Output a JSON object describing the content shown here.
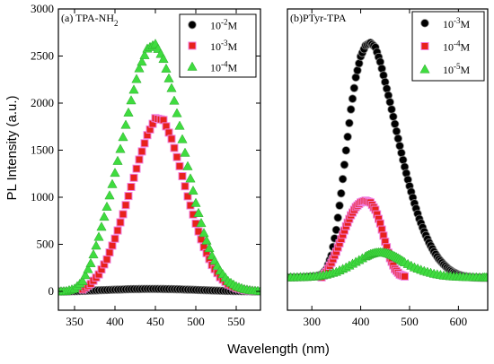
{
  "figure": {
    "xlabel": "Wavelength (nm)",
    "ylabel": "PL Intensity (a.u.)"
  },
  "chart_data": [
    {
      "type": "scatter",
      "panel_label": "(a) TPA-NH",
      "panel_label_sub": "2",
      "xlim": [
        330,
        580
      ],
      "ylim": [
        -200,
        3000
      ],
      "xticks": [
        350,
        400,
        450,
        500,
        550
      ],
      "yticks": [
        0,
        500,
        1000,
        1500,
        2000,
        2500,
        3000
      ],
      "legend_position": "top-right",
      "series": [
        {
          "name_base": "10",
          "name_exp": "-2",
          "name_unit": "M",
          "marker": "circle",
          "color": "#000000",
          "x": [
            330,
            340,
            350,
            360,
            370,
            380,
            390,
            400,
            410,
            420,
            430,
            440,
            450,
            460,
            470,
            480,
            490,
            500,
            510,
            520,
            530,
            540,
            550,
            560,
            570,
            580
          ],
          "y": [
            0,
            0,
            2,
            5,
            8,
            12,
            15,
            18,
            21,
            24,
            25,
            26,
            26,
            25,
            24,
            22,
            19,
            16,
            13,
            10,
            7,
            5,
            3,
            2,
            1,
            0
          ]
        },
        {
          "name_base": "10",
          "name_exp": "-3",
          "name_unit": "M",
          "marker": "square",
          "color": "#e8211c",
          "x": [
            360,
            370,
            380,
            390,
            400,
            410,
            420,
            430,
            440,
            450,
            460,
            470,
            480,
            490,
            500,
            510,
            520,
            530,
            540,
            550,
            560,
            570
          ],
          "y": [
            20,
            80,
            180,
            340,
            560,
            820,
            1110,
            1400,
            1660,
            1840,
            1820,
            1620,
            1330,
            1010,
            720,
            470,
            280,
            150,
            75,
            35,
            15,
            5
          ]
        },
        {
          "name_base": "10",
          "name_exp": "-4",
          "name_unit": "M",
          "marker": "triangle",
          "color": "#3fdc3f",
          "x": [
            330,
            340,
            350,
            360,
            370,
            380,
            390,
            400,
            410,
            420,
            430,
            440,
            450,
            460,
            470,
            480,
            490,
            500,
            510,
            520,
            530,
            540,
            550,
            560,
            570,
            580
          ],
          "y": [
            0,
            5,
            30,
            110,
            300,
            580,
            900,
            1260,
            1640,
            2030,
            2370,
            2580,
            2630,
            2470,
            2160,
            1760,
            1330,
            940,
            620,
            380,
            220,
            110,
            55,
            25,
            10,
            5
          ]
        }
      ]
    },
    {
      "type": "scatter",
      "panel_label": "(b)PTyr-TPA",
      "xlim": [
        250,
        660
      ],
      "ylim": [
        -300,
        3000
      ],
      "xticks": [
        300,
        400,
        500,
        600
      ],
      "legend_position": "top-right",
      "series": [
        {
          "name_base": "10",
          "name_exp": "-3",
          "name_unit": "M",
          "marker": "circle",
          "color": "#000000",
          "x": [
            250,
            270,
            290,
            310,
            320,
            330,
            340,
            350,
            360,
            370,
            380,
            390,
            400,
            410,
            420,
            430,
            440,
            450,
            460,
            470,
            480,
            490,
            500,
            510,
            520,
            530,
            540,
            550,
            560,
            570,
            580,
            590,
            600,
            610,
            620,
            630,
            640,
            650,
            660
          ],
          "y": [
            60,
            60,
            65,
            75,
            90,
            150,
            300,
            580,
            980,
            1450,
            1900,
            2250,
            2480,
            2600,
            2630,
            2580,
            2420,
            2200,
            1980,
            1740,
            1500,
            1270,
            1060,
            870,
            700,
            560,
            440,
            340,
            260,
            200,
            150,
            115,
            90,
            75,
            65,
            60,
            58,
            57,
            56
          ]
        },
        {
          "name_base": "10",
          "name_exp": "-4",
          "name_unit": "M",
          "marker": "square",
          "color": "#e8211c",
          "x": [
            320,
            330,
            340,
            350,
            360,
            370,
            380,
            390,
            400,
            410,
            420,
            430,
            440,
            450,
            460,
            470,
            480,
            490
          ],
          "y": [
            60,
            120,
            220,
            340,
            480,
            620,
            740,
            830,
            880,
            900,
            880,
            800,
            650,
            450,
            270,
            150,
            90,
            70
          ]
        },
        {
          "name_base": "10",
          "name_exp": "-5",
          "name_unit": "M",
          "marker": "triangle",
          "color": "#3fdc3f",
          "x": [
            250,
            270,
            290,
            310,
            330,
            350,
            370,
            390,
            410,
            420,
            430,
            440,
            450,
            460,
            470,
            480,
            490,
            510,
            530,
            550,
            570,
            590,
            610,
            630,
            650,
            660
          ],
          "y": [
            60,
            62,
            65,
            72,
            90,
            120,
            170,
            230,
            290,
            315,
            330,
            335,
            330,
            315,
            290,
            260,
            225,
            170,
            130,
            100,
            80,
            70,
            65,
            62,
            60,
            60
          ]
        }
      ]
    }
  ]
}
